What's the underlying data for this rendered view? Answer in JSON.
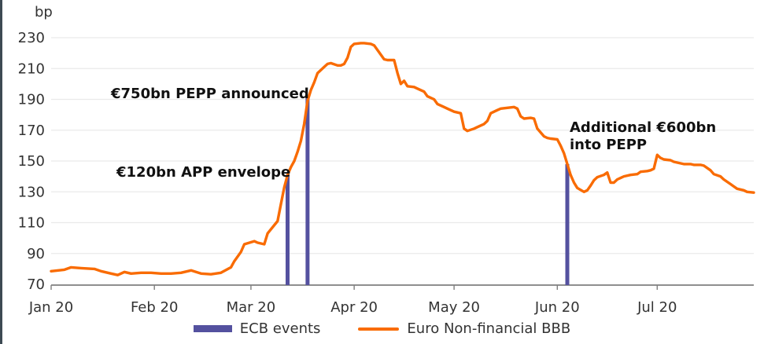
{
  "chart_data": {
    "type": "line",
    "title": "",
    "ylabel": "bp",
    "xlabel": "",
    "ylim": [
      70,
      230
    ],
    "yticks": [
      230,
      210,
      190,
      170,
      150,
      130,
      110,
      90,
      70
    ],
    "grid": true,
    "legend_position": "bottom",
    "x_range": [
      "2020-01-01",
      "2020-07-30"
    ],
    "xticks": [
      {
        "label": "Jan 20",
        "date": "2020-01-01"
      },
      {
        "label": "Feb 20",
        "date": "2020-02-01"
      },
      {
        "label": "Mar 20",
        "date": "2020-03-01"
      },
      {
        "label": "Apr 20",
        "date": "2020-04-01"
      },
      {
        "label": "May 20",
        "date": "2020-05-01"
      },
      {
        "label": "Jun 20",
        "date": "2020-06-01"
      },
      {
        "label": "Jul 20",
        "date": "2020-07-01"
      }
    ],
    "series": [
      {
        "name": "Euro Non-financial BBB",
        "color": "#f96b02",
        "points": [
          [
            "2020-01-01",
            78.5
          ],
          [
            "2020-01-05",
            79.5
          ],
          [
            "2020-01-07",
            81
          ],
          [
            "2020-01-10",
            80.5
          ],
          [
            "2020-01-14",
            80
          ],
          [
            "2020-01-16",
            78.5
          ],
          [
            "2020-01-19",
            77
          ],
          [
            "2020-01-21",
            76
          ],
          [
            "2020-01-23",
            78
          ],
          [
            "2020-01-25",
            77
          ],
          [
            "2020-01-28",
            77.5
          ],
          [
            "2020-01-31",
            77.5
          ],
          [
            "2020-02-03",
            77
          ],
          [
            "2020-02-06",
            77
          ],
          [
            "2020-02-09",
            77.5
          ],
          [
            "2020-02-12",
            79
          ],
          [
            "2020-02-15",
            77
          ],
          [
            "2020-02-18",
            76.5
          ],
          [
            "2020-02-21",
            77.5
          ],
          [
            "2020-02-24",
            81
          ],
          [
            "2020-02-25",
            85
          ],
          [
            "2020-02-27",
            91
          ],
          [
            "2020-02-28",
            96
          ],
          [
            "2020-03-02",
            98
          ],
          [
            "2020-03-03",
            97
          ],
          [
            "2020-03-05",
            96
          ],
          [
            "2020-03-06",
            103
          ],
          [
            "2020-03-09",
            111
          ],
          [
            "2020-03-10",
            122
          ],
          [
            "2020-03-11",
            133
          ],
          [
            "2020-03-12",
            141
          ],
          [
            "2020-03-13",
            146
          ],
          [
            "2020-03-14",
            150
          ],
          [
            "2020-03-15",
            156
          ],
          [
            "2020-03-16",
            163
          ],
          [
            "2020-03-17",
            174
          ],
          [
            "2020-03-18",
            189
          ],
          [
            "2020-03-19",
            196
          ],
          [
            "2020-03-20",
            201
          ],
          [
            "2020-03-21",
            207
          ],
          [
            "2020-03-23",
            211
          ],
          [
            "2020-03-24",
            213
          ],
          [
            "2020-03-25",
            213.5
          ],
          [
            "2020-03-27",
            212
          ],
          [
            "2020-03-28",
            212
          ],
          [
            "2020-03-29",
            213
          ],
          [
            "2020-03-30",
            217
          ],
          [
            "2020-03-31",
            224
          ],
          [
            "2020-04-01",
            226
          ],
          [
            "2020-04-03",
            226.5
          ],
          [
            "2020-04-04",
            226.5
          ],
          [
            "2020-04-06",
            226
          ],
          [
            "2020-04-07",
            225
          ],
          [
            "2020-04-08",
            222
          ],
          [
            "2020-04-09",
            219
          ],
          [
            "2020-04-10",
            216
          ],
          [
            "2020-04-11",
            215.5
          ],
          [
            "2020-04-13",
            215.5
          ],
          [
            "2020-04-14",
            207
          ],
          [
            "2020-04-15",
            200
          ],
          [
            "2020-04-16",
            202
          ],
          [
            "2020-04-17",
            198.5
          ],
          [
            "2020-04-19",
            198
          ],
          [
            "2020-04-20",
            197
          ],
          [
            "2020-04-22",
            195
          ],
          [
            "2020-04-23",
            192
          ],
          [
            "2020-04-25",
            190
          ],
          [
            "2020-04-26",
            187
          ],
          [
            "2020-04-28",
            185
          ],
          [
            "2020-04-29",
            184
          ],
          [
            "2020-05-01",
            182
          ],
          [
            "2020-05-03",
            181
          ],
          [
            "2020-05-04",
            171
          ],
          [
            "2020-05-05",
            169.5
          ],
          [
            "2020-05-07",
            171
          ],
          [
            "2020-05-08",
            172
          ],
          [
            "2020-05-10",
            174
          ],
          [
            "2020-05-11",
            176
          ],
          [
            "2020-05-12",
            181
          ],
          [
            "2020-05-14",
            183
          ],
          [
            "2020-05-15",
            184
          ],
          [
            "2020-05-17",
            184.5
          ],
          [
            "2020-05-19",
            185
          ],
          [
            "2020-05-20",
            184
          ],
          [
            "2020-05-21",
            179
          ],
          [
            "2020-05-22",
            177.5
          ],
          [
            "2020-05-24",
            178
          ],
          [
            "2020-05-25",
            177.5
          ],
          [
            "2020-05-26",
            171
          ],
          [
            "2020-05-28",
            166
          ],
          [
            "2020-05-29",
            165
          ],
          [
            "2020-05-30",
            164.5
          ],
          [
            "2020-06-01",
            164
          ],
          [
            "2020-06-02",
            160
          ],
          [
            "2020-06-03",
            155
          ],
          [
            "2020-06-04",
            148
          ],
          [
            "2020-06-05",
            141
          ],
          [
            "2020-06-06",
            136
          ],
          [
            "2020-06-07",
            132.5
          ],
          [
            "2020-06-09",
            130
          ],
          [
            "2020-06-10",
            131
          ],
          [
            "2020-06-11",
            134
          ],
          [
            "2020-06-12",
            137.5
          ],
          [
            "2020-06-13",
            139.5
          ],
          [
            "2020-06-15",
            141
          ],
          [
            "2020-06-16",
            142.5
          ],
          [
            "2020-06-17",
            136
          ],
          [
            "2020-06-18",
            136
          ],
          [
            "2020-06-19",
            138
          ],
          [
            "2020-06-20",
            139
          ],
          [
            "2020-06-21",
            140
          ],
          [
            "2020-06-23",
            141
          ],
          [
            "2020-06-25",
            141.5
          ],
          [
            "2020-06-26",
            143
          ],
          [
            "2020-06-28",
            143.5
          ],
          [
            "2020-06-29",
            144
          ],
          [
            "2020-06-30",
            145
          ],
          [
            "2020-07-01",
            154
          ],
          [
            "2020-07-02",
            152
          ],
          [
            "2020-07-03",
            151
          ],
          [
            "2020-07-05",
            150.5
          ],
          [
            "2020-07-06",
            149.5
          ],
          [
            "2020-07-07",
            149
          ],
          [
            "2020-07-09",
            148
          ],
          [
            "2020-07-11",
            148
          ],
          [
            "2020-07-12",
            147.5
          ],
          [
            "2020-07-14",
            147.5
          ],
          [
            "2020-07-15",
            147
          ],
          [
            "2020-07-17",
            144
          ],
          [
            "2020-07-18",
            141.5
          ],
          [
            "2020-07-20",
            140
          ],
          [
            "2020-07-21",
            138
          ],
          [
            "2020-07-23",
            135
          ],
          [
            "2020-07-24",
            133.5
          ],
          [
            "2020-07-25",
            132
          ],
          [
            "2020-07-27",
            131
          ],
          [
            "2020-07-28",
            130
          ],
          [
            "2020-07-30",
            129.5
          ]
        ]
      }
    ],
    "event_bars": {
      "name": "ECB events",
      "color": "#54519f",
      "bars": [
        {
          "date": "2020-03-12",
          "value": 141
        },
        {
          "date": "2020-03-18",
          "value": 191
        },
        {
          "date": "2020-06-04",
          "value": 148
        }
      ]
    },
    "annotations": [
      {
        "text": "€750bn PEPP announced"
      },
      {
        "text": "€120bn APP envelope"
      },
      {
        "text": "Additional €600bn",
        "text2": "into PEPP"
      }
    ],
    "axis_colors": {
      "grid": "#eaeaea",
      "axis": "#7f7f7f",
      "tick_label": "#333333"
    }
  }
}
